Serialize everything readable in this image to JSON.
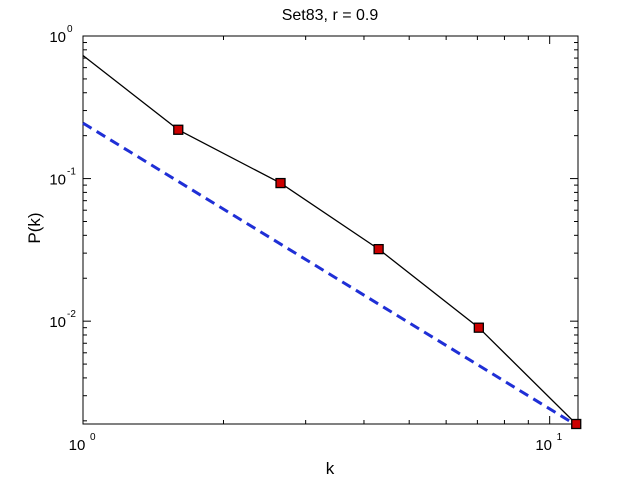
{
  "chart_data": {
    "type": "line",
    "title": "Set83, r = 0.9",
    "xlabel": "k",
    "ylabel": "P(k)",
    "xscale": "log",
    "yscale": "log",
    "xlim": [
      1,
      11.5
    ],
    "ylim": [
      0.0019,
      1
    ],
    "x_ticks": [
      {
        "value": 1,
        "base": "10",
        "exp": "0"
      },
      {
        "value": 10,
        "base": "10",
        "exp": "1"
      }
    ],
    "y_ticks": [
      {
        "value": 1,
        "base": "10",
        "exp": "0"
      },
      {
        "value": 0.1,
        "base": "10",
        "exp": "-1"
      },
      {
        "value": 0.01,
        "base": "10",
        "exp": "-2"
      }
    ],
    "grid": false,
    "series": [
      {
        "style": "solid",
        "color": "#000000",
        "marker": "square",
        "marker_color": "#cc0000",
        "x": [
          1,
          1.6,
          2.65,
          4.3,
          7.05,
          11.4
        ],
        "y": [
          0.73,
          0.22,
          0.093,
          0.032,
          0.009,
          0.0019
        ],
        "marker_x": [
          1.6,
          2.65,
          4.3,
          7.05,
          11.4
        ],
        "marker_y": [
          0.22,
          0.093,
          0.032,
          0.009,
          0.0019
        ]
      },
      {
        "style": "dashed",
        "color": "#1f2fd6",
        "x": [
          1,
          11.3
        ],
        "y": [
          0.245,
          0.0019
        ]
      }
    ]
  }
}
